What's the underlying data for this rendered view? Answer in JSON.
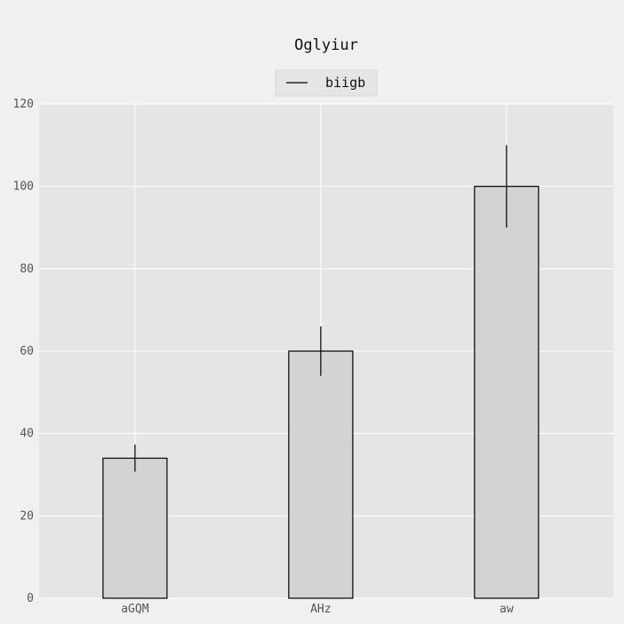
{
  "chart_data": {
    "type": "bar",
    "title": "Oglyiur",
    "xlabel": "",
    "ylabel": "",
    "categories": [
      "aGQM",
      "AHz",
      "aw"
    ],
    "series": [
      {
        "name": "biigb",
        "values": [
          34,
          60,
          100
        ],
        "errors": [
          3.3,
          6.0,
          10.0
        ],
        "color": "#d3d3d3"
      }
    ],
    "ylim": [
      0,
      120
    ],
    "yticks": [
      0,
      20,
      40,
      60,
      80,
      100,
      120
    ],
    "ytick_labels": [
      "0",
      "20",
      "40",
      "60",
      "80",
      "100",
      "120"
    ],
    "grid": true,
    "legend_position": "top-center"
  },
  "colors": {
    "figure_background": "#f0f0f0",
    "plot_background": "#e5e5e5",
    "grid": "#ffffff",
    "bar_fill": "#d3d3d3",
    "bar_edge": "#000000",
    "error_bar": "#000000",
    "legend_background": "#e5e5e5",
    "legend_line": "#000000"
  }
}
